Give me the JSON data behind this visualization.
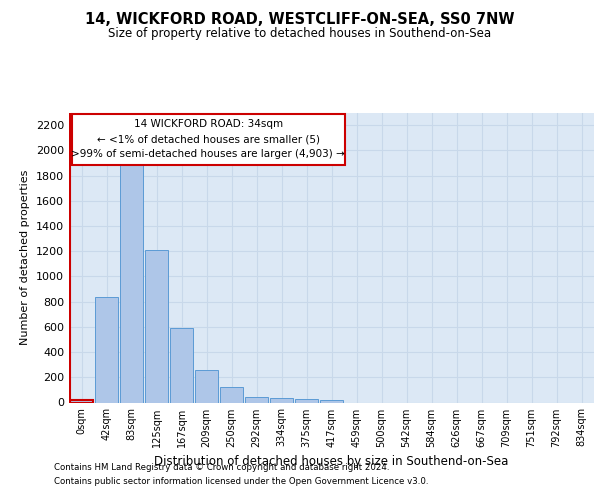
{
  "title_line1": "14, WICKFORD ROAD, WESTCLIFF-ON-SEA, SS0 7NW",
  "title_line2": "Size of property relative to detached houses in Southend-on-Sea",
  "xlabel": "Distribution of detached houses by size in Southend-on-Sea",
  "ylabel": "Number of detached properties",
  "footnote1": "Contains HM Land Registry data © Crown copyright and database right 2024.",
  "footnote2": "Contains public sector information licensed under the Open Government Licence v3.0.",
  "annotation_line1": "14 WICKFORD ROAD: 34sqm",
  "annotation_line2": "← <1% of detached houses are smaller (5)",
  "annotation_line3": ">99% of semi-detached houses are larger (4,903) →",
  "bar_labels": [
    "0sqm",
    "42sqm",
    "83sqm",
    "125sqm",
    "167sqm",
    "209sqm",
    "250sqm",
    "292sqm",
    "334sqm",
    "375sqm",
    "417sqm",
    "459sqm",
    "500sqm",
    "542sqm",
    "584sqm",
    "626sqm",
    "667sqm",
    "709sqm",
    "751sqm",
    "792sqm",
    "834sqm"
  ],
  "bar_values": [
    20,
    840,
    1900,
    1210,
    590,
    260,
    120,
    40,
    35,
    25,
    20,
    0,
    0,
    0,
    0,
    0,
    0,
    0,
    0,
    0,
    0
  ],
  "bar_color": "#aec6e8",
  "bar_edge_color": "#5b9bd5",
  "highlight_color": "#cc0000",
  "annotation_box_color": "#cc0000",
  "ylim": [
    0,
    2300
  ],
  "yticks": [
    0,
    200,
    400,
    600,
    800,
    1000,
    1200,
    1400,
    1600,
    1800,
    2000,
    2200
  ],
  "grid_color": "#c8d8ea",
  "bg_color": "#dce8f5",
  "fig_bg_color": "#ffffff"
}
